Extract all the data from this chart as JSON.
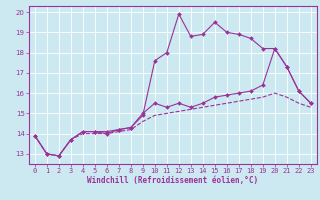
{
  "xlabel": "Windchill (Refroidissement éolien,°C)",
  "bg_color": "#cce8f0",
  "line_color": "#993399",
  "xlim": [
    -0.5,
    23.5
  ],
  "ylim": [
    12.5,
    20.3
  ],
  "xticks": [
    0,
    1,
    2,
    3,
    4,
    5,
    6,
    7,
    8,
    9,
    10,
    11,
    12,
    13,
    14,
    15,
    16,
    17,
    18,
    19,
    20,
    21,
    22,
    23
  ],
  "yticks": [
    13,
    14,
    15,
    16,
    17,
    18,
    19,
    20
  ],
  "series1_x": [
    0,
    1,
    2,
    3,
    4,
    5,
    6,
    7,
    8,
    9,
    10,
    11,
    12,
    13,
    14,
    15,
    16,
    17,
    18,
    19,
    20,
    21,
    22,
    23
  ],
  "series1_y": [
    13.9,
    13.0,
    12.9,
    13.7,
    14.1,
    14.1,
    14.1,
    14.2,
    14.3,
    14.9,
    17.6,
    18.0,
    19.9,
    18.8,
    18.9,
    19.5,
    19.0,
    18.9,
    18.7,
    18.2,
    18.2,
    17.3,
    16.1,
    15.5
  ],
  "series2_x": [
    0,
    1,
    2,
    3,
    4,
    5,
    6,
    7,
    8,
    9,
    10,
    11,
    12,
    13,
    14,
    15,
    16,
    17,
    18,
    19,
    20,
    21,
    22,
    23
  ],
  "series2_y": [
    13.9,
    13.0,
    12.9,
    13.7,
    14.1,
    14.1,
    14.0,
    14.2,
    14.3,
    15.0,
    15.5,
    15.3,
    15.5,
    15.3,
    15.5,
    15.8,
    15.9,
    16.0,
    16.1,
    16.4,
    18.2,
    17.3,
    16.1,
    15.5
  ],
  "series3_x": [
    0,
    1,
    2,
    3,
    4,
    5,
    6,
    7,
    8,
    9,
    10,
    11,
    12,
    13,
    14,
    15,
    16,
    17,
    18,
    19,
    20,
    21,
    22,
    23
  ],
  "series3_y": [
    13.9,
    13.0,
    12.9,
    13.7,
    14.0,
    14.0,
    14.0,
    14.1,
    14.2,
    14.6,
    14.9,
    15.0,
    15.1,
    15.2,
    15.3,
    15.4,
    15.5,
    15.6,
    15.7,
    15.8,
    16.0,
    15.8,
    15.5,
    15.3
  ]
}
